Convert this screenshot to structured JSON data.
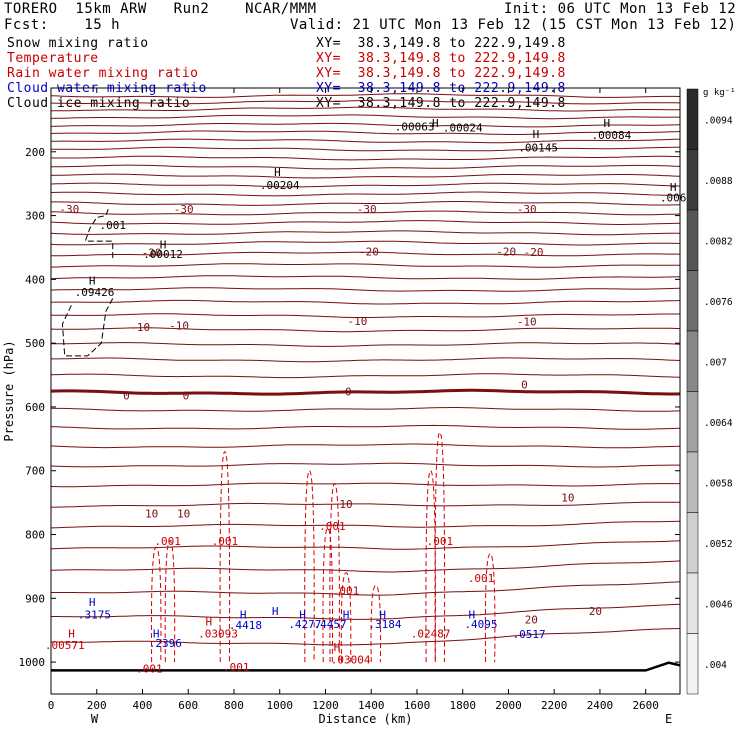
{
  "header": {
    "model_title": "TORERO  15km ARW   Run2    NCAR/MMM",
    "init": "Init: 06 UTC Mon 13 Feb 12",
    "fcst": "Fcst:    15 h",
    "valid": "Valid: 21 UTC Mon 13 Feb 12 (15 CST Mon 13 Feb 12)",
    "fields": [
      {
        "name": "Snow mixing ratio",
        "xy": "XY=  38.3,149.8 to 222.9,149.8",
        "color": "#000000"
      },
      {
        "name": "Temperature",
        "xy": "XY=  38.3,149.8 to 222.9,149.8",
        "color": "#c80000"
      },
      {
        "name": "Rain water mixing ratio",
        "xy": "XY=  38.3,149.8 to 222.9,149.8",
        "color": "#c80000"
      },
      {
        "name": "Cloud water mixing ratio",
        "xy": "XY=  38.3,149.8 to 222.9,149.8",
        "color": "#0000c8"
      },
      {
        "name": "Cloud ice mixing ratio",
        "xy": "XY=  38.3,149.8 to 222.9,149.8",
        "color": "#000000"
      }
    ]
  },
  "chart_data": {
    "type": "contour-cross-section",
    "xlabel": "Distance (km)",
    "ylabel": "Pressure (hPa)",
    "xlim": [
      0,
      2750
    ],
    "x_ticks": [
      "0",
      "200",
      "400",
      "600",
      "800",
      "1000",
      "1200",
      "1400",
      "1600",
      "1800",
      "2000",
      "2200",
      "2400",
      "2600"
    ],
    "x_tick_values": [
      0,
      200,
      400,
      600,
      800,
      1000,
      1200,
      1400,
      1600,
      1800,
      2000,
      2200,
      2400,
      2600
    ],
    "ylim": [
      100,
      1050
    ],
    "y_ticks": [
      "200",
      "300",
      "400",
      "500",
      "600",
      "700",
      "800",
      "900",
      "1000"
    ],
    "y_tick_values": [
      200,
      300,
      400,
      500,
      600,
      700,
      800,
      900,
      1000
    ],
    "endpoints": {
      "left": "W",
      "right": "E"
    },
    "colorbar": {
      "unit": "g kg⁻¹",
      "labels": [
        ".0094",
        ".0088",
        ".0082",
        ".0076",
        ".007",
        ".0064",
        ".0058",
        ".0052",
        ".0046",
        ".004"
      ],
      "values": [
        0.0094,
        0.0088,
        0.0082,
        0.0076,
        0.007,
        0.0064,
        0.0058,
        0.0052,
        0.0046,
        0.004
      ],
      "colors": [
        "#2a2a2a",
        "#3c3c3c",
        "#565656",
        "#6e6e6e",
        "#888888",
        "#a2a2a2",
        "#bababa",
        "#cfcfcf",
        "#e3e3e3",
        "#f2f2f2"
      ]
    },
    "temperature_contours": {
      "color": "#7a0f0f",
      "levels_c": [
        -30,
        -20,
        -10,
        0,
        10,
        20
      ],
      "labels": [
        {
          "text": "-30",
          "x": 80,
          "p": 290
        },
        {
          "text": "-30",
          "x": 580,
          "p": 290
        },
        {
          "text": "-30",
          "x": 1380,
          "p": 290
        },
        {
          "text": "-30",
          "x": 2080,
          "p": 290
        },
        {
          "text": "-20",
          "x": 440,
          "p": 358
        },
        {
          "text": "-20",
          "x": 1390,
          "p": 356
        },
        {
          "text": "-20",
          "x": 1990,
          "p": 356
        },
        {
          "text": "-20",
          "x": 2110,
          "p": 357
        },
        {
          "text": "-10",
          "x": 390,
          "p": 475
        },
        {
          "text": "-10",
          "x": 560,
          "p": 472
        },
        {
          "text": "-10",
          "x": 1340,
          "p": 465
        },
        {
          "text": "-10",
          "x": 2080,
          "p": 466
        },
        {
          "text": "0",
          "x": 330,
          "p": 582
        },
        {
          "text": "0",
          "x": 590,
          "p": 582
        },
        {
          "text": "0",
          "x": 1300,
          "p": 576
        },
        {
          "text": "0",
          "x": 2070,
          "p": 565
        },
        {
          "text": "10",
          "x": 440,
          "p": 767
        },
        {
          "text": "10",
          "x": 580,
          "p": 767
        },
        {
          "text": "10",
          "x": 1290,
          "p": 752
        },
        {
          "text": "10",
          "x": 2260,
          "p": 742
        },
        {
          "text": "20",
          "x": 2380,
          "p": 920
        },
        {
          "text": "20",
          "x": 2100,
          "p": 933
        }
      ]
    },
    "annotations": [
      {
        "text": "H",
        "x": 1680,
        "p": 155,
        "color": "#000000"
      },
      {
        "text": ".00063",
        "x": 1590,
        "p": 160,
        "color": "#000000"
      },
      {
        "text": ".00024",
        "x": 1800,
        "p": 162,
        "color": "#000000"
      },
      {
        "text": "H",
        "x": 2430,
        "p": 155,
        "color": "#000000"
      },
      {
        "text": ".00084",
        "x": 2450,
        "p": 174,
        "color": "#000000"
      },
      {
        "text": "H",
        "x": 2120,
        "p": 172,
        "color": "#000000"
      },
      {
        "text": ".00145",
        "x": 2130,
        "p": 193,
        "color": "#000000"
      },
      {
        "text": "H",
        "x": 990,
        "p": 232,
        "color": "#000000"
      },
      {
        "text": ".00204",
        "x": 1000,
        "p": 252,
        "color": "#000000"
      },
      {
        "text": "H",
        "x": 2720,
        "p": 255,
        "color": "#000000"
      },
      {
        "text": ".006",
        "x": 2720,
        "p": 272,
        "color": "#000000"
      },
      {
        "text": ".001",
        "x": 270,
        "p": 315,
        "color": "#000000"
      },
      {
        "text": "H",
        "x": 490,
        "p": 345,
        "color": "#000000"
      },
      {
        "text": ".00012",
        "x": 490,
        "p": 360,
        "color": "#000000"
      },
      {
        "text": "H",
        "x": 180,
        "p": 402,
        "color": "#000000"
      },
      {
        "text": ".09426",
        "x": 190,
        "p": 420,
        "color": "#000000"
      },
      {
        "text": ".001",
        "x": 510,
        "p": 810,
        "color": "#c80000"
      },
      {
        "text": ".001",
        "x": 760,
        "p": 810,
        "color": "#c80000"
      },
      {
        "text": ".001",
        "x": 1230,
        "p": 787,
        "color": "#c80000"
      },
      {
        "text": ".001",
        "x": 1700,
        "p": 810,
        "color": "#c80000"
      },
      {
        "text": ".001",
        "x": 1880,
        "p": 868,
        "color": "#c80000"
      },
      {
        "text": ".001",
        "x": 1290,
        "p": 888,
        "color": "#c80000"
      },
      {
        "text": "H",
        "x": 180,
        "p": 906,
        "color": "#0000c8"
      },
      {
        "text": ".3175",
        "x": 190,
        "p": 925,
        "color": "#0000c8"
      },
      {
        "text": "H",
        "x": 90,
        "p": 955,
        "color": "#c80000"
      },
      {
        "text": ".00571",
        "x": 60,
        "p": 973,
        "color": "#c80000"
      },
      {
        "text": "H",
        "x": 460,
        "p": 955,
        "color": "#0000c8"
      },
      {
        "text": ".2396",
        "x": 500,
        "p": 970,
        "color": "#0000c8"
      },
      {
        "text": "H",
        "x": 690,
        "p": 936,
        "color": "#c80000"
      },
      {
        "text": ".03093",
        "x": 730,
        "p": 955,
        "color": "#c80000"
      },
      {
        "text": "H",
        "x": 840,
        "p": 925,
        "color": "#0000c8"
      },
      {
        "text": ".4418",
        "x": 850,
        "p": 942,
        "color": "#0000c8"
      },
      {
        "text": "H",
        "x": 980,
        "p": 920,
        "color": "#0000c8"
      },
      {
        "text": ".4277",
        "x": 1110,
        "p": 940,
        "color": "#0000c8"
      },
      {
        "text": "H",
        "x": 1100,
        "p": 925,
        "color": "#0000c8"
      },
      {
        "text": ".4457",
        "x": 1220,
        "p": 940,
        "color": "#0000c8"
      },
      {
        "text": "H",
        "x": 1290,
        "p": 925,
        "color": "#0000c8"
      },
      {
        "text": "H",
        "x": 1450,
        "p": 925,
        "color": "#0000c8"
      },
      {
        "text": ".3184",
        "x": 1460,
        "p": 940,
        "color": "#0000c8"
      },
      {
        "text": ".02487",
        "x": 1660,
        "p": 955,
        "color": "#c80000"
      },
      {
        "text": "H",
        "x": 1840,
        "p": 925,
        "color": "#0000c8"
      },
      {
        "text": ".4095",
        "x": 1880,
        "p": 940,
        "color": "#0000c8"
      },
      {
        "text": "H",
        "x": 1250,
        "p": 976,
        "color": "#c80000"
      },
      {
        "text": ".03004",
        "x": 1310,
        "p": 996,
        "color": "#c80000"
      },
      {
        "text": ".0517",
        "x": 2090,
        "p": 956,
        "color": "#0000c8"
      },
      {
        "text": ".001",
        "x": 430,
        "p": 1010,
        "color": "#c80000"
      },
      {
        "text": ".001",
        "x": 810,
        "p": 1008,
        "color": "#c80000"
      }
    ]
  }
}
